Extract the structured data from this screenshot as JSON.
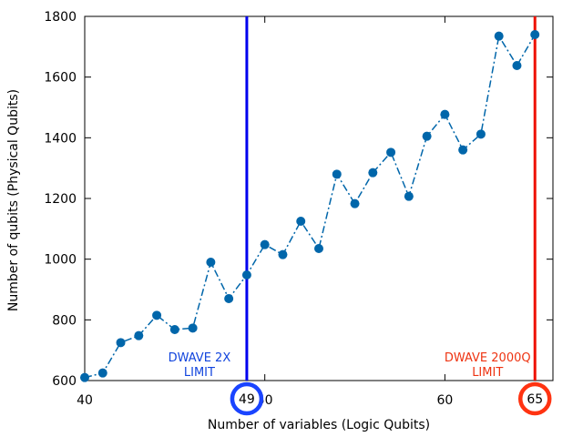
{
  "chart_data": {
    "type": "line",
    "title": "",
    "xlabel": "Number of variables (Logic Qubits)",
    "ylabel": "Number of qubits (Physical Qubits)",
    "xlim": [
      40,
      66
    ],
    "ylim": [
      600,
      1800
    ],
    "xticks": [
      40,
      50,
      60
    ],
    "yticks": [
      600,
      800,
      1000,
      1200,
      1400,
      1600,
      1800
    ],
    "grid": false,
    "series": [
      {
        "color": "#0066aa",
        "line_style": "dash-dot",
        "marker": "filled-circle",
        "x": [
          40,
          41,
          42,
          43,
          44,
          45,
          46,
          47,
          48,
          49,
          50,
          51,
          52,
          53,
          54,
          55,
          56,
          57,
          58,
          59,
          60,
          61,
          62,
          63,
          64,
          65
        ],
        "y": [
          610,
          625,
          725,
          748,
          815,
          768,
          773,
          990,
          870,
          948,
          1048,
          1015,
          1125,
          1035,
          1280,
          1183,
          1285,
          1352,
          1207,
          1405,
          1477,
          1360,
          1412,
          1735,
          1638,
          1740
        ]
      }
    ],
    "annotations": [
      {
        "type": "vertical-line",
        "x": 49,
        "color": "#0000ee",
        "label_lines": [
          "DWAVE 2X",
          "LIMIT"
        ],
        "label_color": "#1144dd",
        "highlight_text": "49",
        "highlight_circle_color": "#1a44ff"
      },
      {
        "type": "vertical-line",
        "x": 65,
        "color": "#ee1100",
        "label_lines": [
          "DWAVE 2000Q",
          "LIMIT"
        ],
        "label_color": "#ee3311",
        "highlight_text": "65",
        "highlight_circle_color": "#ff3311"
      }
    ]
  }
}
